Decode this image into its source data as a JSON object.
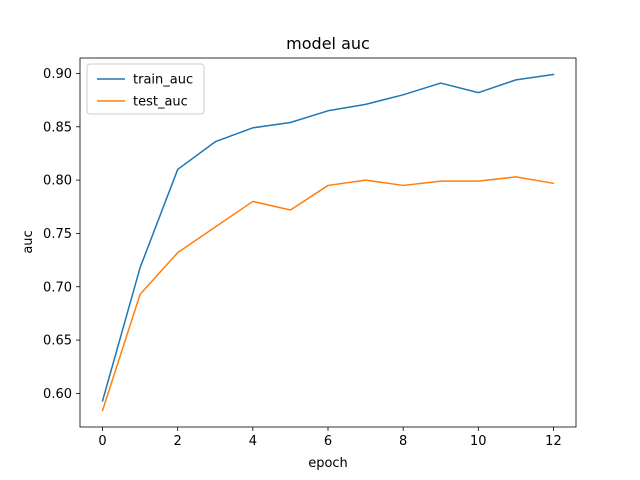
{
  "chart_data": {
    "type": "line",
    "title": "model auc",
    "xlabel": "epoch",
    "ylabel": "auc",
    "x": [
      0,
      1,
      2,
      3,
      4,
      5,
      6,
      7,
      8,
      9,
      10,
      11,
      12
    ],
    "series": [
      {
        "name": "train_auc",
        "color": "#1f77b4",
        "values": [
          0.593,
          0.718,
          0.81,
          0.836,
          0.849,
          0.854,
          0.865,
          0.871,
          0.88,
          0.891,
          0.882,
          0.894,
          0.899
        ]
      },
      {
        "name": "test_auc",
        "color": "#ff7f0e",
        "values": [
          0.584,
          0.693,
          0.732,
          0.756,
          0.78,
          0.772,
          0.795,
          0.8,
          0.795,
          0.799,
          0.799,
          0.803,
          0.797
        ]
      }
    ],
    "xlim": [
      -0.6,
      12.6
    ],
    "ylim": [
      0.5685,
      0.9145
    ],
    "xticks": [
      0,
      2,
      4,
      6,
      8,
      10,
      12
    ],
    "xtick_labels": [
      "0",
      "2",
      "4",
      "6",
      "8",
      "10",
      "12"
    ],
    "yticks": [
      0.6,
      0.65,
      0.7,
      0.75,
      0.8,
      0.85,
      0.9
    ],
    "ytick_labels": [
      "0.60",
      "0.65",
      "0.70",
      "0.75",
      "0.80",
      "0.85",
      "0.90"
    ],
    "grid": false,
    "legend_position": "top-left"
  }
}
